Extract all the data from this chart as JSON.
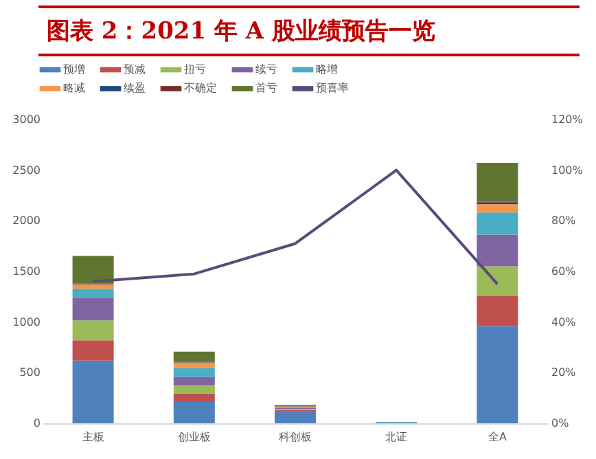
{
  "chart_data": {
    "type": "bar",
    "title": "图表 2：2021 年 A 股业绩预告一览",
    "stacked": true,
    "legend": "top",
    "categories": [
      "主板",
      "创业板",
      "科创板",
      "北证",
      "全A"
    ],
    "ylim": [
      0,
      3000
    ],
    "yticks": [
      0,
      500,
      1000,
      1500,
      2000,
      2500,
      3000
    ],
    "y2lim": [
      0,
      120
    ],
    "y2ticks": [
      {
        "value": 0,
        "label": "0%"
      },
      {
        "value": 20,
        "label": "20%"
      },
      {
        "value": 40,
        "label": "40%"
      },
      {
        "value": 60,
        "label": "60%"
      },
      {
        "value": 80,
        "label": "80%"
      },
      {
        "value": 100,
        "label": "100%"
      },
      {
        "value": 120,
        "label": "120%"
      }
    ],
    "series": [
      {
        "name": "预增",
        "color": "#4f81bd",
        "values": [
          620,
          210,
          110,
          10,
          960
        ]
      },
      {
        "name": "预减",
        "color": "#c0504d",
        "values": [
          200,
          83,
          20,
          0,
          301
        ]
      },
      {
        "name": "扭亏",
        "color": "#9bbb59",
        "values": [
          197,
          82,
          10,
          0,
          290
        ]
      },
      {
        "name": "续亏",
        "color": "#8064a2",
        "values": [
          224,
          82,
          10,
          0,
          312
        ]
      },
      {
        "name": "略增",
        "color": "#4bacc6",
        "values": [
          88,
          87,
          10,
          3,
          219
        ]
      },
      {
        "name": "略减",
        "color": "#f79646",
        "values": [
          43,
          55,
          5,
          0,
          82
        ]
      },
      {
        "name": "续盈",
        "color": "#1f497d",
        "values": [
          8,
          4,
          2,
          0,
          16
        ]
      },
      {
        "name": "不确定",
        "color": "#772c2a",
        "values": [
          3,
          2,
          1,
          0,
          8
        ]
      },
      {
        "name": "首亏",
        "color": "#5f7530",
        "values": [
          270,
          103,
          12,
          0,
          384
        ]
      },
      {
        "name": "预喜率",
        "color": "#5b4a7a",
        "type": "line",
        "axis": "y2",
        "values": [
          56,
          59,
          71,
          100,
          55
        ]
      }
    ]
  }
}
